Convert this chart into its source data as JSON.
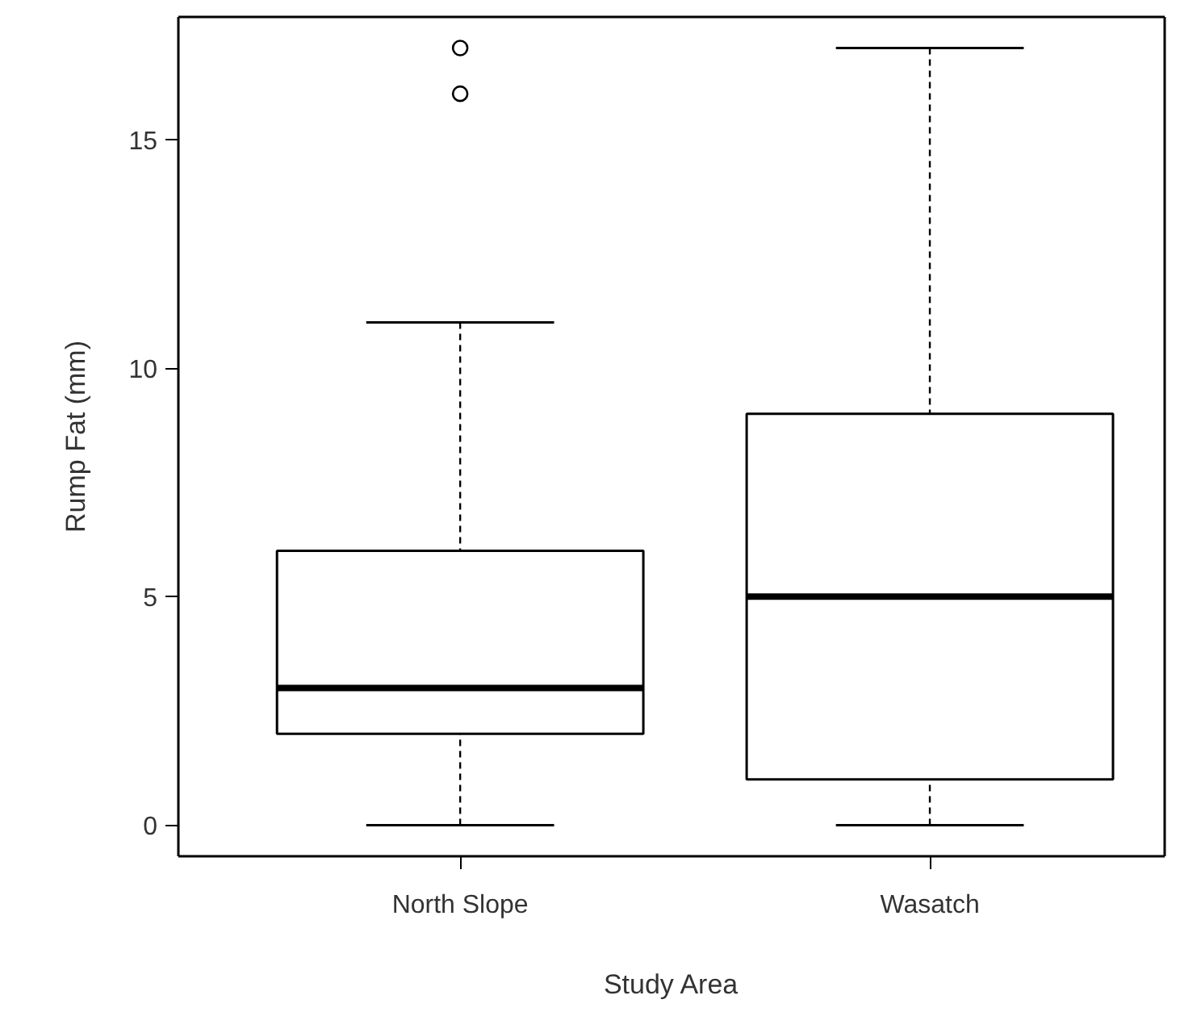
{
  "chart_data": {
    "type": "box",
    "xlabel": "Study Area",
    "ylabel": "Rump Fat (mm)",
    "categories": [
      "North Slope",
      "Wasatch"
    ],
    "boxes": [
      {
        "low": 0,
        "q1": 2,
        "median": 3,
        "q3": 6,
        "high": 11,
        "outliers": [
          16,
          17
        ]
      },
      {
        "low": 0,
        "q1": 1,
        "median": 5,
        "q3": 9,
        "high": 17
      }
    ],
    "ylim": [
      -0.68,
      17.68
    ],
    "yticks": [
      0,
      5,
      10,
      15
    ],
    "grid": false
  }
}
